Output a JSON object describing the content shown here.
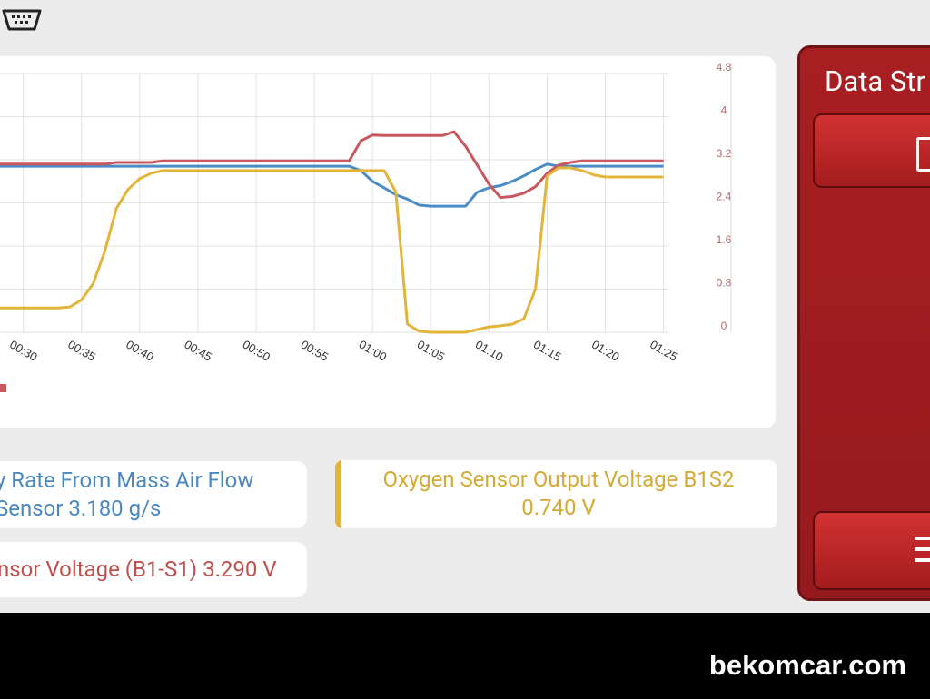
{
  "chart_data": {
    "type": "line",
    "x": [
      28,
      29,
      30,
      31,
      32,
      33,
      34,
      35,
      36,
      37,
      38,
      39,
      40,
      41,
      42,
      43,
      44,
      45,
      46,
      47,
      48,
      49,
      50,
      51,
      52,
      53,
      54,
      55,
      56,
      57,
      58,
      59,
      60,
      61,
      62,
      63,
      64,
      65,
      66,
      67,
      68,
      69,
      70,
      71,
      72,
      73,
      74,
      75,
      76,
      77,
      78,
      79,
      80,
      81,
      82,
      83,
      84,
      85
    ],
    "xlim": [
      28,
      85.5
    ],
    "xticks": [
      {
        "value": 30,
        "label": "00:30"
      },
      {
        "value": 35,
        "label": "00:35"
      },
      {
        "value": 40,
        "label": "00:40"
      },
      {
        "value": 45,
        "label": "00:45"
      },
      {
        "value": 50,
        "label": "00:50"
      },
      {
        "value": 55,
        "label": "00:55"
      },
      {
        "value": 60,
        "label": "01:00"
      },
      {
        "value": 65,
        "label": "01:05"
      },
      {
        "value": 70,
        "label": "01:10"
      },
      {
        "value": 75,
        "label": "01:15"
      },
      {
        "value": 80,
        "label": "01:20"
      },
      {
        "value": 85,
        "label": "01:25"
      }
    ],
    "y2lim": [
      0,
      4.8
    ],
    "y2ticks": [
      0,
      0.8,
      1.6,
      2.4,
      3.2,
      4,
      4.8
    ],
    "grid": true,
    "series": [
      {
        "name": "y Rate From Mass Air Flow Sensor 3.180 g/s",
        "color": "#4a8cc6",
        "axis": "y2",
        "values": [
          3.08,
          3.08,
          3.08,
          3.08,
          3.08,
          3.08,
          3.08,
          3.08,
          3.08,
          3.08,
          3.08,
          3.08,
          3.08,
          3.08,
          3.08,
          3.08,
          3.08,
          3.08,
          3.08,
          3.08,
          3.08,
          3.08,
          3.08,
          3.08,
          3.08,
          3.08,
          3.08,
          3.08,
          3.08,
          3.08,
          3.08,
          3.0,
          2.8,
          2.68,
          2.55,
          2.47,
          2.36,
          2.34,
          2.34,
          2.34,
          2.34,
          2.6,
          2.68,
          2.72,
          2.8,
          2.9,
          3.02,
          3.12,
          3.08,
          3.08,
          3.08,
          3.08,
          3.08,
          3.08,
          3.08,
          3.08,
          3.08,
          3.08
        ]
      },
      {
        "name": "nsor Voltage (B1-S1) 3.290 V",
        "color": "#c8575e",
        "axis": "y2",
        "values": [
          3.12,
          3.12,
          3.12,
          3.12,
          3.12,
          3.12,
          3.12,
          3.12,
          3.12,
          3.12,
          3.15,
          3.15,
          3.15,
          3.15,
          3.18,
          3.18,
          3.18,
          3.18,
          3.18,
          3.18,
          3.18,
          3.18,
          3.18,
          3.18,
          3.18,
          3.18,
          3.18,
          3.18,
          3.18,
          3.18,
          3.18,
          3.55,
          3.66,
          3.65,
          3.65,
          3.65,
          3.65,
          3.65,
          3.65,
          3.72,
          3.45,
          3.1,
          2.75,
          2.5,
          2.52,
          2.58,
          2.7,
          2.95,
          3.1,
          3.15,
          3.18,
          3.18,
          3.18,
          3.18,
          3.18,
          3.18,
          3.18,
          3.18
        ]
      },
      {
        "name": "Oxygen Sensor Output Voltage B1S2 0.740 V",
        "color": "#e2b43a",
        "axis": "y2",
        "values": [
          0.45,
          0.45,
          0.45,
          0.45,
          0.45,
          0.45,
          0.47,
          0.6,
          0.9,
          1.5,
          2.3,
          2.65,
          2.85,
          2.95,
          3.0,
          3.0,
          3.0,
          3.0,
          3.0,
          3.0,
          3.0,
          3.0,
          3.0,
          3.0,
          3.0,
          3.0,
          3.0,
          3.0,
          3.0,
          3.0,
          3.0,
          3.0,
          3.0,
          3.0,
          2.6,
          0.15,
          0.02,
          0,
          0,
          0,
          0,
          0.05,
          0.1,
          0.12,
          0.15,
          0.25,
          0.8,
          2.9,
          3.05,
          3.05,
          3.0,
          2.92,
          2.88,
          2.88,
          2.88,
          2.88,
          2.88,
          2.88
        ]
      }
    ]
  },
  "side_panel": {
    "title": "Data Str"
  },
  "watermark": "bekomcar.com"
}
